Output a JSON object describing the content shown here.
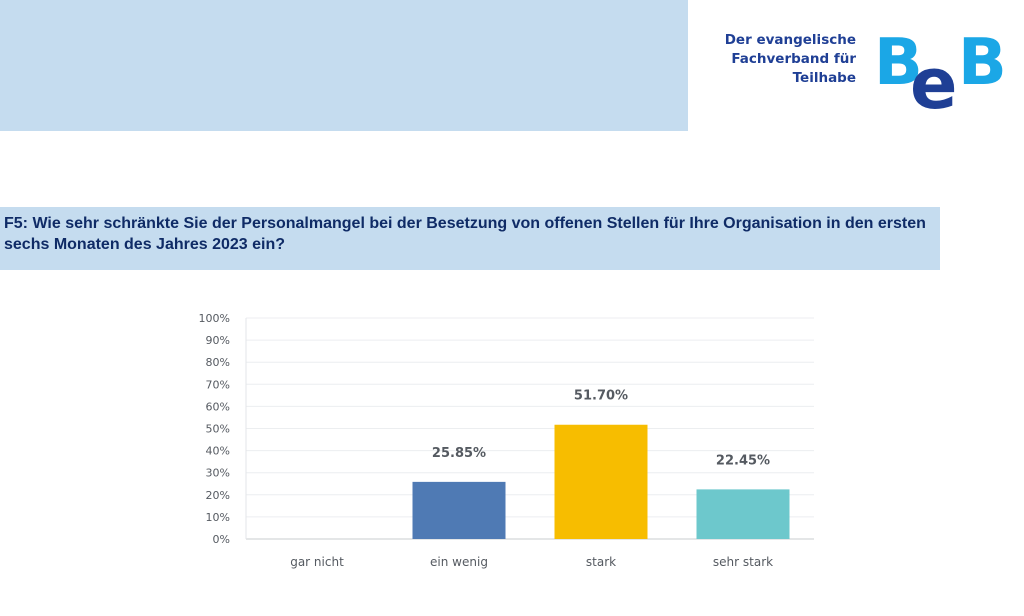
{
  "header": {
    "logo_text_lines": [
      "Der evangelische",
      "Fachverband für",
      "Teilhabe"
    ],
    "logo_letters": [
      "B",
      "e",
      "B"
    ],
    "colors": {
      "band": "#c5dcef",
      "logo_light": "#1ba7e6",
      "logo_dark": "#1f3f95"
    }
  },
  "question": {
    "text": "F5: Wie sehr schränkte Sie der Personalmangel bei der Besetzung von offenen Stellen für Ihre Organisation in den ersten sechs Monaten des Jahres 2023 ein?"
  },
  "chart_data": {
    "type": "bar",
    "title": "",
    "xlabel": "",
    "ylabel": "",
    "categories": [
      "gar nicht",
      "ein wenig",
      "stark",
      "sehr stark"
    ],
    "values": [
      0,
      25.85,
      51.7,
      22.45
    ],
    "value_labels": [
      "",
      "25.85%",
      "51.70%",
      "22.45%"
    ],
    "colors": [
      "#4f7ab4",
      "#4f7ab4",
      "#f7bd00",
      "#6dc8cc"
    ],
    "ylim": [
      0,
      100
    ],
    "yticks": [
      0,
      10,
      20,
      30,
      40,
      50,
      60,
      70,
      80,
      90,
      100
    ],
    "ytick_labels": [
      "0%",
      "10%",
      "20%",
      "30%",
      "40%",
      "50%",
      "60%",
      "70%",
      "80%",
      "90%",
      "100%"
    ],
    "grid": true,
    "legend": "none"
  }
}
